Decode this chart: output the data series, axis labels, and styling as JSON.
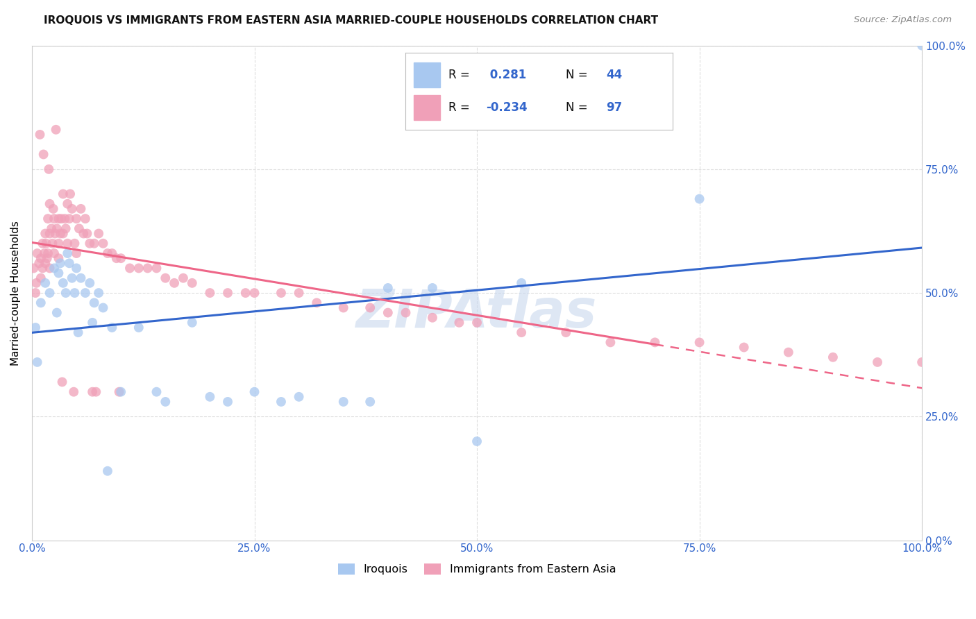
{
  "title": "IROQUOIS VS IMMIGRANTS FROM EASTERN ASIA MARRIED-COUPLE HOUSEHOLDS CORRELATION CHART",
  "source": "Source: ZipAtlas.com",
  "ylabel": "Married-couple Households",
  "color_blue": "#A8C8F0",
  "color_pink": "#F0A0B8",
  "color_line_blue": "#3366CC",
  "color_line_pink": "#EE6688",
  "color_axis": "#3366CC",
  "color_text_black": "#111111",
  "color_watermark": "#C8D8EE",
  "watermark": "ZIPAtlas",
  "legend_r1": " 0.281",
  "legend_n1": "44",
  "legend_r2": "-0.234",
  "legend_n2": "97",
  "iroquois_x": [
    0.4,
    0.6,
    1.0,
    1.5,
    2.0,
    2.5,
    3.0,
    3.2,
    3.5,
    3.8,
    4.0,
    4.2,
    4.5,
    4.8,
    5.0,
    5.5,
    6.0,
    6.5,
    7.0,
    7.5,
    8.0,
    9.0,
    10.0,
    12.0,
    14.0,
    15.0,
    18.0,
    20.0,
    22.0,
    25.0,
    28.0,
    30.0,
    35.0,
    38.0,
    40.0,
    45.0,
    50.0,
    55.0,
    75.0,
    100.0,
    2.8,
    5.2,
    6.8,
    8.5
  ],
  "iroquois_y": [
    43.0,
    36.0,
    48.0,
    52.0,
    50.0,
    55.0,
    54.0,
    56.0,
    52.0,
    50.0,
    58.0,
    56.0,
    53.0,
    50.0,
    55.0,
    53.0,
    50.0,
    52.0,
    48.0,
    50.0,
    47.0,
    43.0,
    30.0,
    43.0,
    30.0,
    28.0,
    44.0,
    29.0,
    28.0,
    30.0,
    28.0,
    29.0,
    28.0,
    28.0,
    51.0,
    51.0,
    20.0,
    52.0,
    69.0,
    100.0,
    46.0,
    42.0,
    44.0,
    14.0
  ],
  "eastern_asia_x": [
    0.2,
    0.4,
    0.5,
    0.6,
    0.8,
    1.0,
    1.0,
    1.2,
    1.2,
    1.4,
    1.5,
    1.5,
    1.6,
    1.7,
    1.8,
    1.8,
    2.0,
    2.0,
    2.0,
    2.2,
    2.3,
    2.4,
    2.5,
    2.5,
    2.6,
    2.8,
    3.0,
    3.0,
    3.0,
    3.2,
    3.3,
    3.5,
    3.5,
    3.7,
    3.8,
    4.0,
    4.0,
    4.2,
    4.5,
    4.8,
    5.0,
    5.0,
    5.3,
    5.5,
    5.8,
    6.0,
    6.2,
    6.5,
    7.0,
    7.5,
    8.0,
    8.5,
    9.0,
    9.5,
    10.0,
    11.0,
    12.0,
    13.0,
    14.0,
    15.0,
    16.0,
    17.0,
    18.0,
    20.0,
    22.0,
    24.0,
    25.0,
    28.0,
    30.0,
    32.0,
    35.0,
    38.0,
    40.0,
    42.0,
    45.0,
    48.0,
    50.0,
    55.0,
    60.0,
    65.0,
    70.0,
    75.0,
    80.0,
    85.0,
    90.0,
    95.0,
    100.0,
    1.3,
    2.7,
    4.3,
    6.8,
    0.9,
    1.9,
    3.4,
    4.7,
    7.2,
    9.8
  ],
  "eastern_asia_y": [
    55.0,
    50.0,
    52.0,
    58.0,
    56.0,
    57.0,
    53.0,
    60.0,
    55.0,
    58.0,
    62.0,
    56.0,
    60.0,
    57.0,
    65.0,
    58.0,
    68.0,
    62.0,
    55.0,
    63.0,
    60.0,
    67.0,
    65.0,
    58.0,
    62.0,
    63.0,
    65.0,
    60.0,
    57.0,
    62.0,
    65.0,
    70.0,
    62.0,
    65.0,
    63.0,
    68.0,
    60.0,
    65.0,
    67.0,
    60.0,
    65.0,
    58.0,
    63.0,
    67.0,
    62.0,
    65.0,
    62.0,
    60.0,
    60.0,
    62.0,
    60.0,
    58.0,
    58.0,
    57.0,
    57.0,
    55.0,
    55.0,
    55.0,
    55.0,
    53.0,
    52.0,
    53.0,
    52.0,
    50.0,
    50.0,
    50.0,
    50.0,
    50.0,
    50.0,
    48.0,
    47.0,
    47.0,
    46.0,
    46.0,
    45.0,
    44.0,
    44.0,
    42.0,
    42.0,
    40.0,
    40.0,
    40.0,
    39.0,
    38.0,
    37.0,
    36.0,
    36.0,
    78.0,
    83.0,
    70.0,
    30.0,
    82.0,
    75.0,
    32.0,
    30.0,
    30.0,
    30.0
  ],
  "xlim": [
    0,
    100
  ],
  "ylim": [
    0,
    100
  ],
  "background_color": "#ffffff",
  "grid_color": "#dddddd",
  "pink_solid_end": 70.0
}
